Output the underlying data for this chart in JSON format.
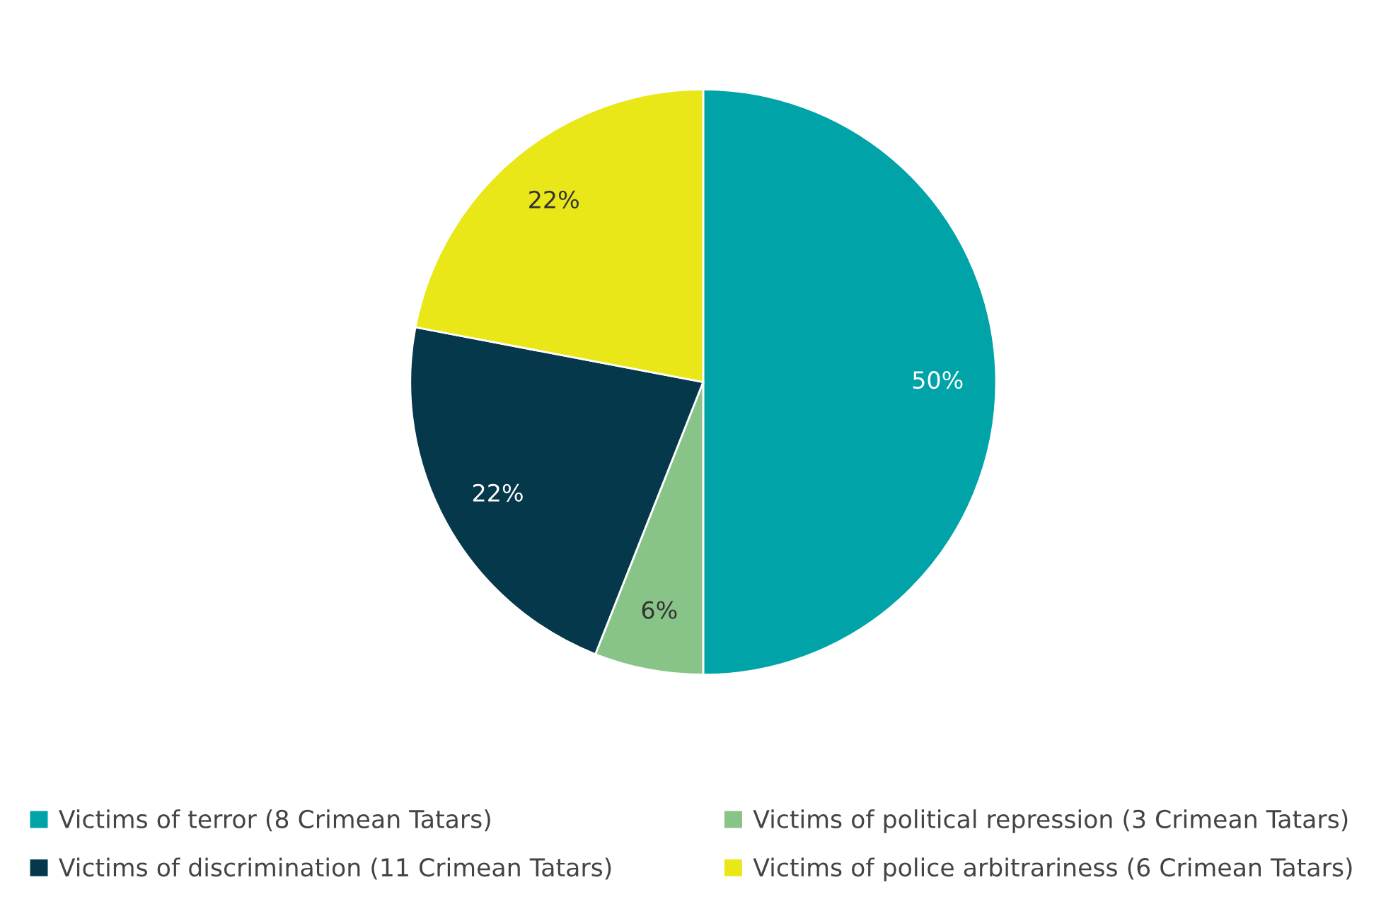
{
  "chart_data": {
    "type": "pie",
    "categories": [
      "Victims of terror (8 Crimean Tatars)",
      "Victims of political repression (3 Crimean Tatars)",
      "Victims of discrimination (11 Crimean Tatars)",
      "Victims of police arbitrariness (6 Crimean Tatars)"
    ],
    "values": [
      50,
      6,
      22,
      22
    ],
    "value_labels": [
      "50%",
      "6%",
      "22%",
      "22%"
    ],
    "colors": [
      "#00a3a8",
      "#88c487",
      "#06384b",
      "#e9e717"
    ],
    "legend": "bottom"
  }
}
